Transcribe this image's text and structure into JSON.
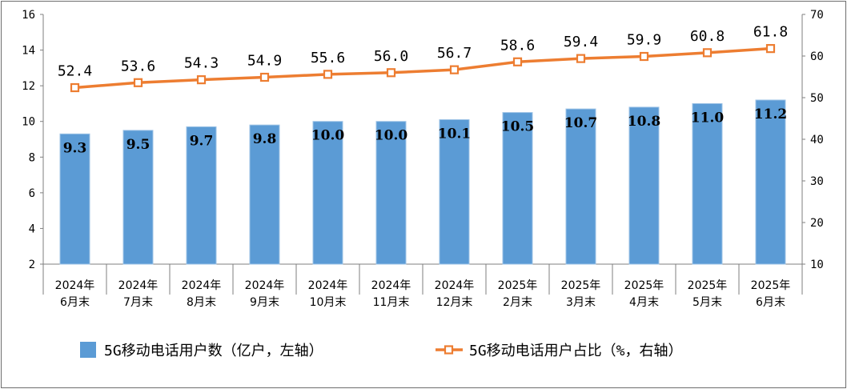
{
  "chart_data": {
    "type": "bar",
    "categories": [
      [
        "2024年",
        "6月末"
      ],
      [
        "2024年",
        "7月末"
      ],
      [
        "2024年",
        "8月末"
      ],
      [
        "2024年",
        "9月末"
      ],
      [
        "2024年",
        "10月末"
      ],
      [
        "2024年",
        "11月末"
      ],
      [
        "2024年",
        "12月末"
      ],
      [
        "2025年",
        "2月末"
      ],
      [
        "2025年",
        "3月末"
      ],
      [
        "2025年",
        "4月末"
      ],
      [
        "2025年",
        "5月末"
      ],
      [
        "2025年",
        "6月末"
      ]
    ],
    "series": [
      {
        "name": "5G移动电话用户数（亿户，左轴）",
        "type": "bar",
        "axis": "left",
        "values": [
          9.3,
          9.5,
          9.7,
          9.8,
          10.0,
          10.0,
          10.1,
          10.5,
          10.7,
          10.8,
          11.0,
          11.2
        ],
        "labels": [
          "9.3",
          "9.5",
          "9.7",
          "9.8",
          "10.0",
          "10.0",
          "10.1",
          "10.5",
          "10.7",
          "10.8",
          "11.0",
          "11.2"
        ],
        "color": "#5b9bd5"
      },
      {
        "name": "5G移动电话用户占比（%，右轴）",
        "type": "line",
        "axis": "right",
        "values": [
          52.4,
          53.6,
          54.3,
          54.9,
          55.6,
          56.0,
          56.7,
          58.6,
          59.4,
          59.9,
          60.8,
          61.8
        ],
        "labels": [
          "52.4",
          "53.6",
          "54.3",
          "54.9",
          "55.6",
          "56.0",
          "56.7",
          "58.6",
          "59.4",
          "59.9",
          "60.8",
          "61.8"
        ],
        "color": "#ed7d31"
      }
    ],
    "y_left": {
      "ylim": [
        2,
        16
      ],
      "ticks": [
        "2",
        "4",
        "6",
        "8",
        "10",
        "12",
        "14",
        "16"
      ]
    },
    "y_right": {
      "ylim": [
        10,
        70
      ],
      "ticks": [
        "10",
        "20",
        "30",
        "40",
        "50",
        "60",
        "70"
      ]
    },
    "grid": false,
    "legend": "bottom"
  }
}
